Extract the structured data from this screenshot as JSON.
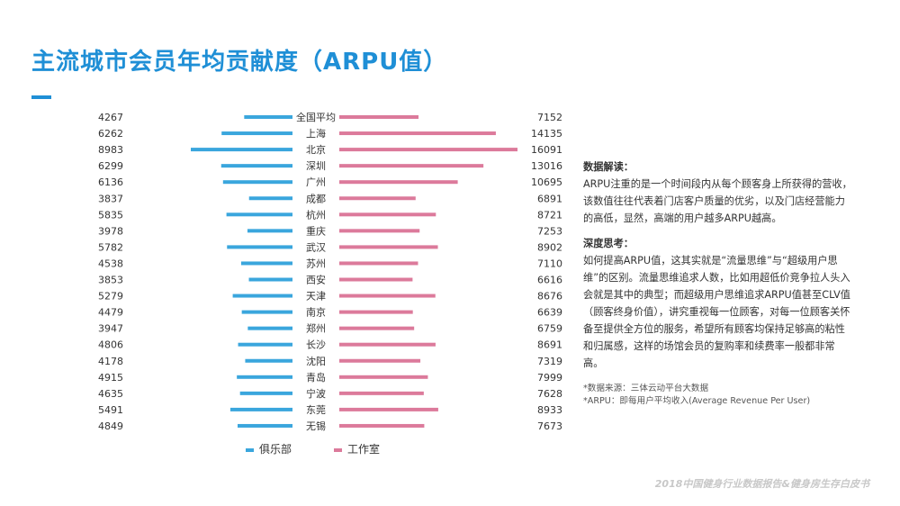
{
  "title": "主流城市会员年均贡献度（ARPU值）",
  "colors": {
    "accent": "#1f8fd6",
    "club": "#3aa6dd",
    "studio": "#dc7a9b",
    "text": "#333333",
    "footer": "#c8c8c8"
  },
  "chart_data": {
    "type": "bar",
    "orientation": "horizontal-diverging",
    "categories": [
      "全国平均",
      "上海",
      "北京",
      "深圳",
      "广州",
      "成都",
      "杭州",
      "重庆",
      "武汉",
      "苏州",
      "西安",
      "天津",
      "南京",
      "郑州",
      "长沙",
      "沈阳",
      "青岛",
      "宁波",
      "东莞",
      "无锡"
    ],
    "series": [
      {
        "name": "俱乐部",
        "values": [
          4267,
          6262,
          8983,
          6299,
          6136,
          3837,
          5835,
          3978,
          5782,
          4538,
          3853,
          5279,
          4479,
          3947,
          4806,
          4178,
          4915,
          4635,
          5491,
          4849
        ]
      },
      {
        "name": "工作室",
        "values": [
          7152,
          14135,
          16091,
          13016,
          10695,
          6891,
          8721,
          7253,
          8902,
          7110,
          6616,
          8676,
          6639,
          6759,
          8691,
          7319,
          7999,
          7628,
          8933,
          7673
        ]
      }
    ],
    "legend": {
      "position": "bottom",
      "items": [
        "俱乐部",
        "工作室"
      ]
    },
    "grid": false
  },
  "notes": {
    "heading1": "数据解读：",
    "para1": "ARPU注重的是一个时间段内从每个顾客身上所获得的营收，该数值往往代表着门店客户质量的优劣，以及门店经营能力的高低，显然，高端的用户越多ARPU越高。",
    "heading2": "深度思考：",
    "para2": "如何提高ARPU值，这其实就是“流量思维”与“超级用户思维”的区别。流量思维追求人数，比如用超低价竞争拉人头入会就是其中的典型；而超级用户思维追求ARPU值甚至CLV值（顾客终身价值），讲究重视每一位顾客，对每一位顾客关怀备至提供全方位的服务，希望所有顾客均保持足够高的粘性和归属感，这样的场馆会员的复购率和续费率一般都非常高。",
    "source1": "*数据来源：三体云动平台大数据",
    "source2": "*ARPU：即每用户平均收入(Average Revenue Per User)"
  },
  "footer": "2018中国健身行业数据报告&健身房生存白皮书"
}
